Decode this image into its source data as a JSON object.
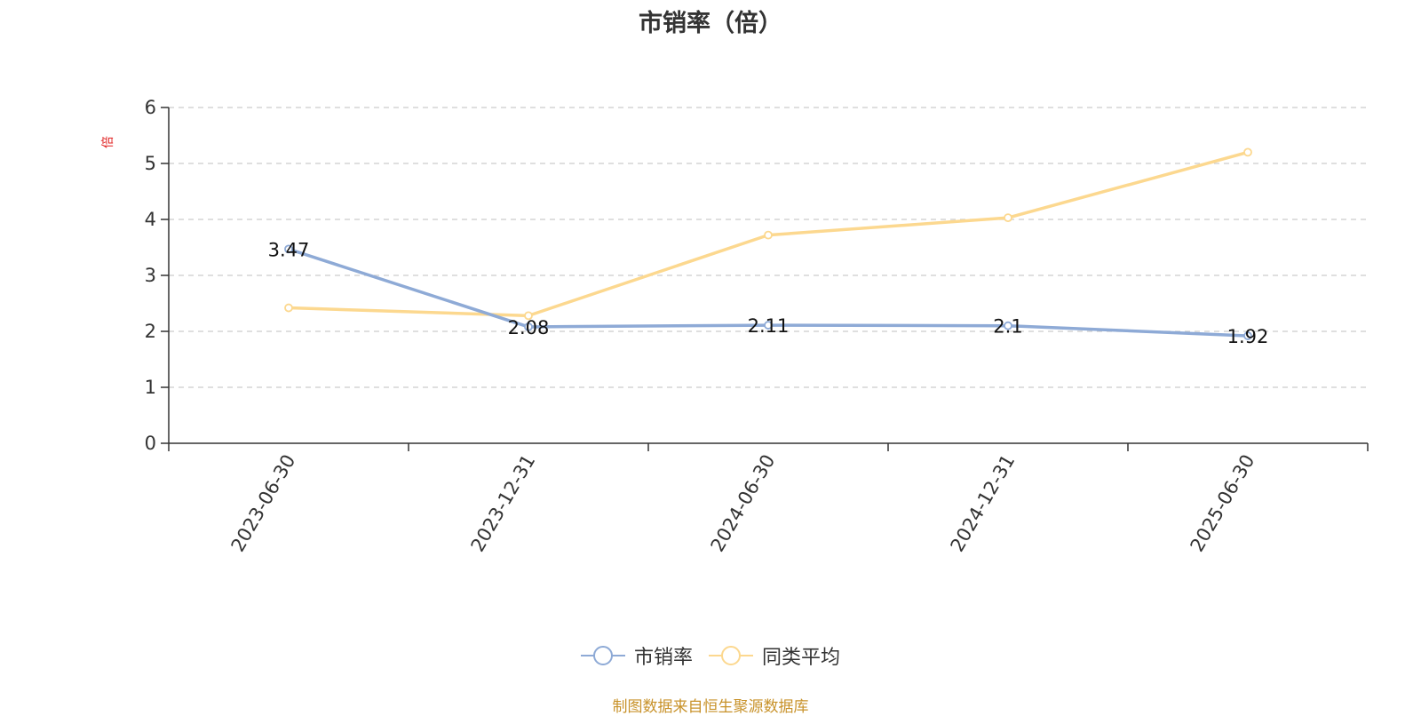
{
  "chart_data": {
    "type": "line",
    "title": "市销率（倍）",
    "ylabel": "倍",
    "x": [
      "2023-06-30",
      "2023-12-31",
      "2024-06-30",
      "2024-12-31",
      "2025-06-30"
    ],
    "ylim": [
      0,
      6
    ],
    "yticks": [
      0,
      1,
      2,
      3,
      4,
      5,
      6
    ],
    "grid": true,
    "legend_position": "bottom-center",
    "series": [
      {
        "name": "市销率",
        "color": "#8eaad6",
        "values": [
          3.47,
          2.08,
          2.11,
          2.1,
          1.92
        ],
        "labels": [
          "3.47",
          "2.08",
          "2.11",
          "2.1",
          "1.92"
        ]
      },
      {
        "name": "同类平均",
        "color": "#fcd88f",
        "values": [
          2.42,
          2.28,
          3.72,
          4.03,
          5.2
        ]
      }
    ]
  },
  "source": "制图数据来自恒生聚源数据库",
  "colors": {
    "ylabel": "#e02020",
    "axis": "#333333",
    "grid": "#cccccc",
    "source": "#c8922a"
  }
}
